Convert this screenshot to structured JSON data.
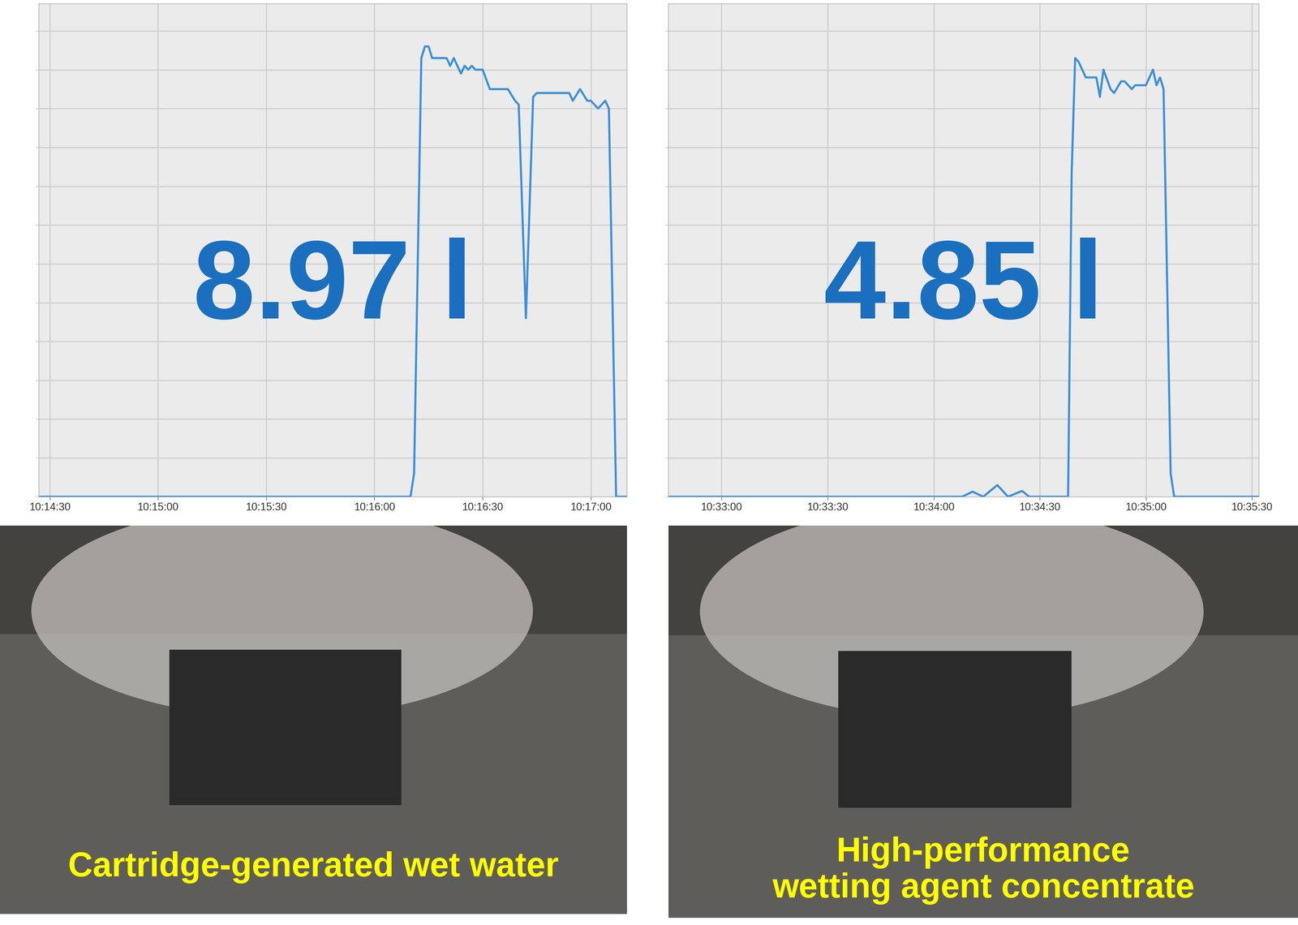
{
  "chart_data": [
    {
      "type": "line",
      "color": "#3a8fdc",
      "grid": true,
      "tick_labels": "x",
      "annotation": "8.97 l",
      "caption": "Cartridge-generated wet water",
      "x": [
        36867,
        36970,
        36971,
        36973,
        36974,
        36975,
        36976,
        36980,
        36981,
        36982,
        36984,
        36985,
        36986,
        36987,
        36988,
        36990,
        36992,
        36997,
        36999,
        37000,
        37002,
        37004,
        37005,
        37014,
        37015,
        37017,
        37019,
        37020,
        37022,
        37024,
        37025,
        37027,
        37030
      ],
      "values": [
        0,
        0,
        0.6,
        11.3,
        11.6,
        11.6,
        11.3,
        11.3,
        11.1,
        11.3,
        10.9,
        11.1,
        11.0,
        11.1,
        11.0,
        11.0,
        10.5,
        10.5,
        10.2,
        10.1,
        4.6,
        10.3,
        10.4,
        10.4,
        10.2,
        10.5,
        10.2,
        10.2,
        10.0,
        10.2,
        10.0,
        0,
        0
      ],
      "xlim": [
        36867,
        37030
      ],
      "xticks": [
        {
          "value": 36870,
          "label": "10:14:30"
        },
        {
          "value": 36900,
          "label": "10:15:00"
        },
        {
          "value": 36930,
          "label": "10:15:30"
        },
        {
          "value": 36960,
          "label": "10:16:00"
        },
        {
          "value": 36990,
          "label": "10:16:30"
        },
        {
          "value": 37020,
          "label": "10:17:00"
        }
      ],
      "ylim": [
        0,
        12.7
      ],
      "yticks": [
        0,
        1,
        2,
        3,
        4,
        5,
        6,
        7,
        8,
        9,
        10,
        11,
        12
      ]
    },
    {
      "type": "line",
      "color": "#3a8fdc",
      "grid": true,
      "tick_labels": "x",
      "annotation": "4.85 l",
      "caption": "High-performance\nwetting agent concentrate",
      "x": [
        37965,
        38048,
        38051,
        38054,
        38058,
        38061,
        38065,
        38067,
        38078,
        38079,
        38080,
        38081,
        38083,
        38086,
        38087,
        38088,
        38090,
        38091,
        38093,
        38094,
        38096,
        38097,
        38100,
        38102,
        38103,
        38104,
        38105,
        38107,
        38108,
        38132
      ],
      "values": [
        0,
        0,
        0.13,
        0,
        0.3,
        0,
        0.15,
        0,
        0,
        8.3,
        11.3,
        11.2,
        10.8,
        10.8,
        10.3,
        11.0,
        10.5,
        10.4,
        10.7,
        10.7,
        10.5,
        10.6,
        10.6,
        11.0,
        10.6,
        10.8,
        10.5,
        0.6,
        0,
        0
      ],
      "xlim": [
        37965,
        38132
      ],
      "xticks": [
        {
          "value": 37980,
          "label": "10:33:00"
        },
        {
          "value": 38010,
          "label": "10:33:30"
        },
        {
          "value": 38040,
          "label": "10:34:00"
        },
        {
          "value": 38070,
          "label": "10:34:30"
        },
        {
          "value": 38100,
          "label": "10:35:00"
        },
        {
          "value": 38130,
          "label": "10:35:30"
        }
      ],
      "ylim": [
        0,
        12.7
      ],
      "yticks": [
        0,
        1,
        2,
        3,
        4,
        5,
        6,
        7,
        8,
        9,
        10,
        11,
        12
      ]
    }
  ]
}
